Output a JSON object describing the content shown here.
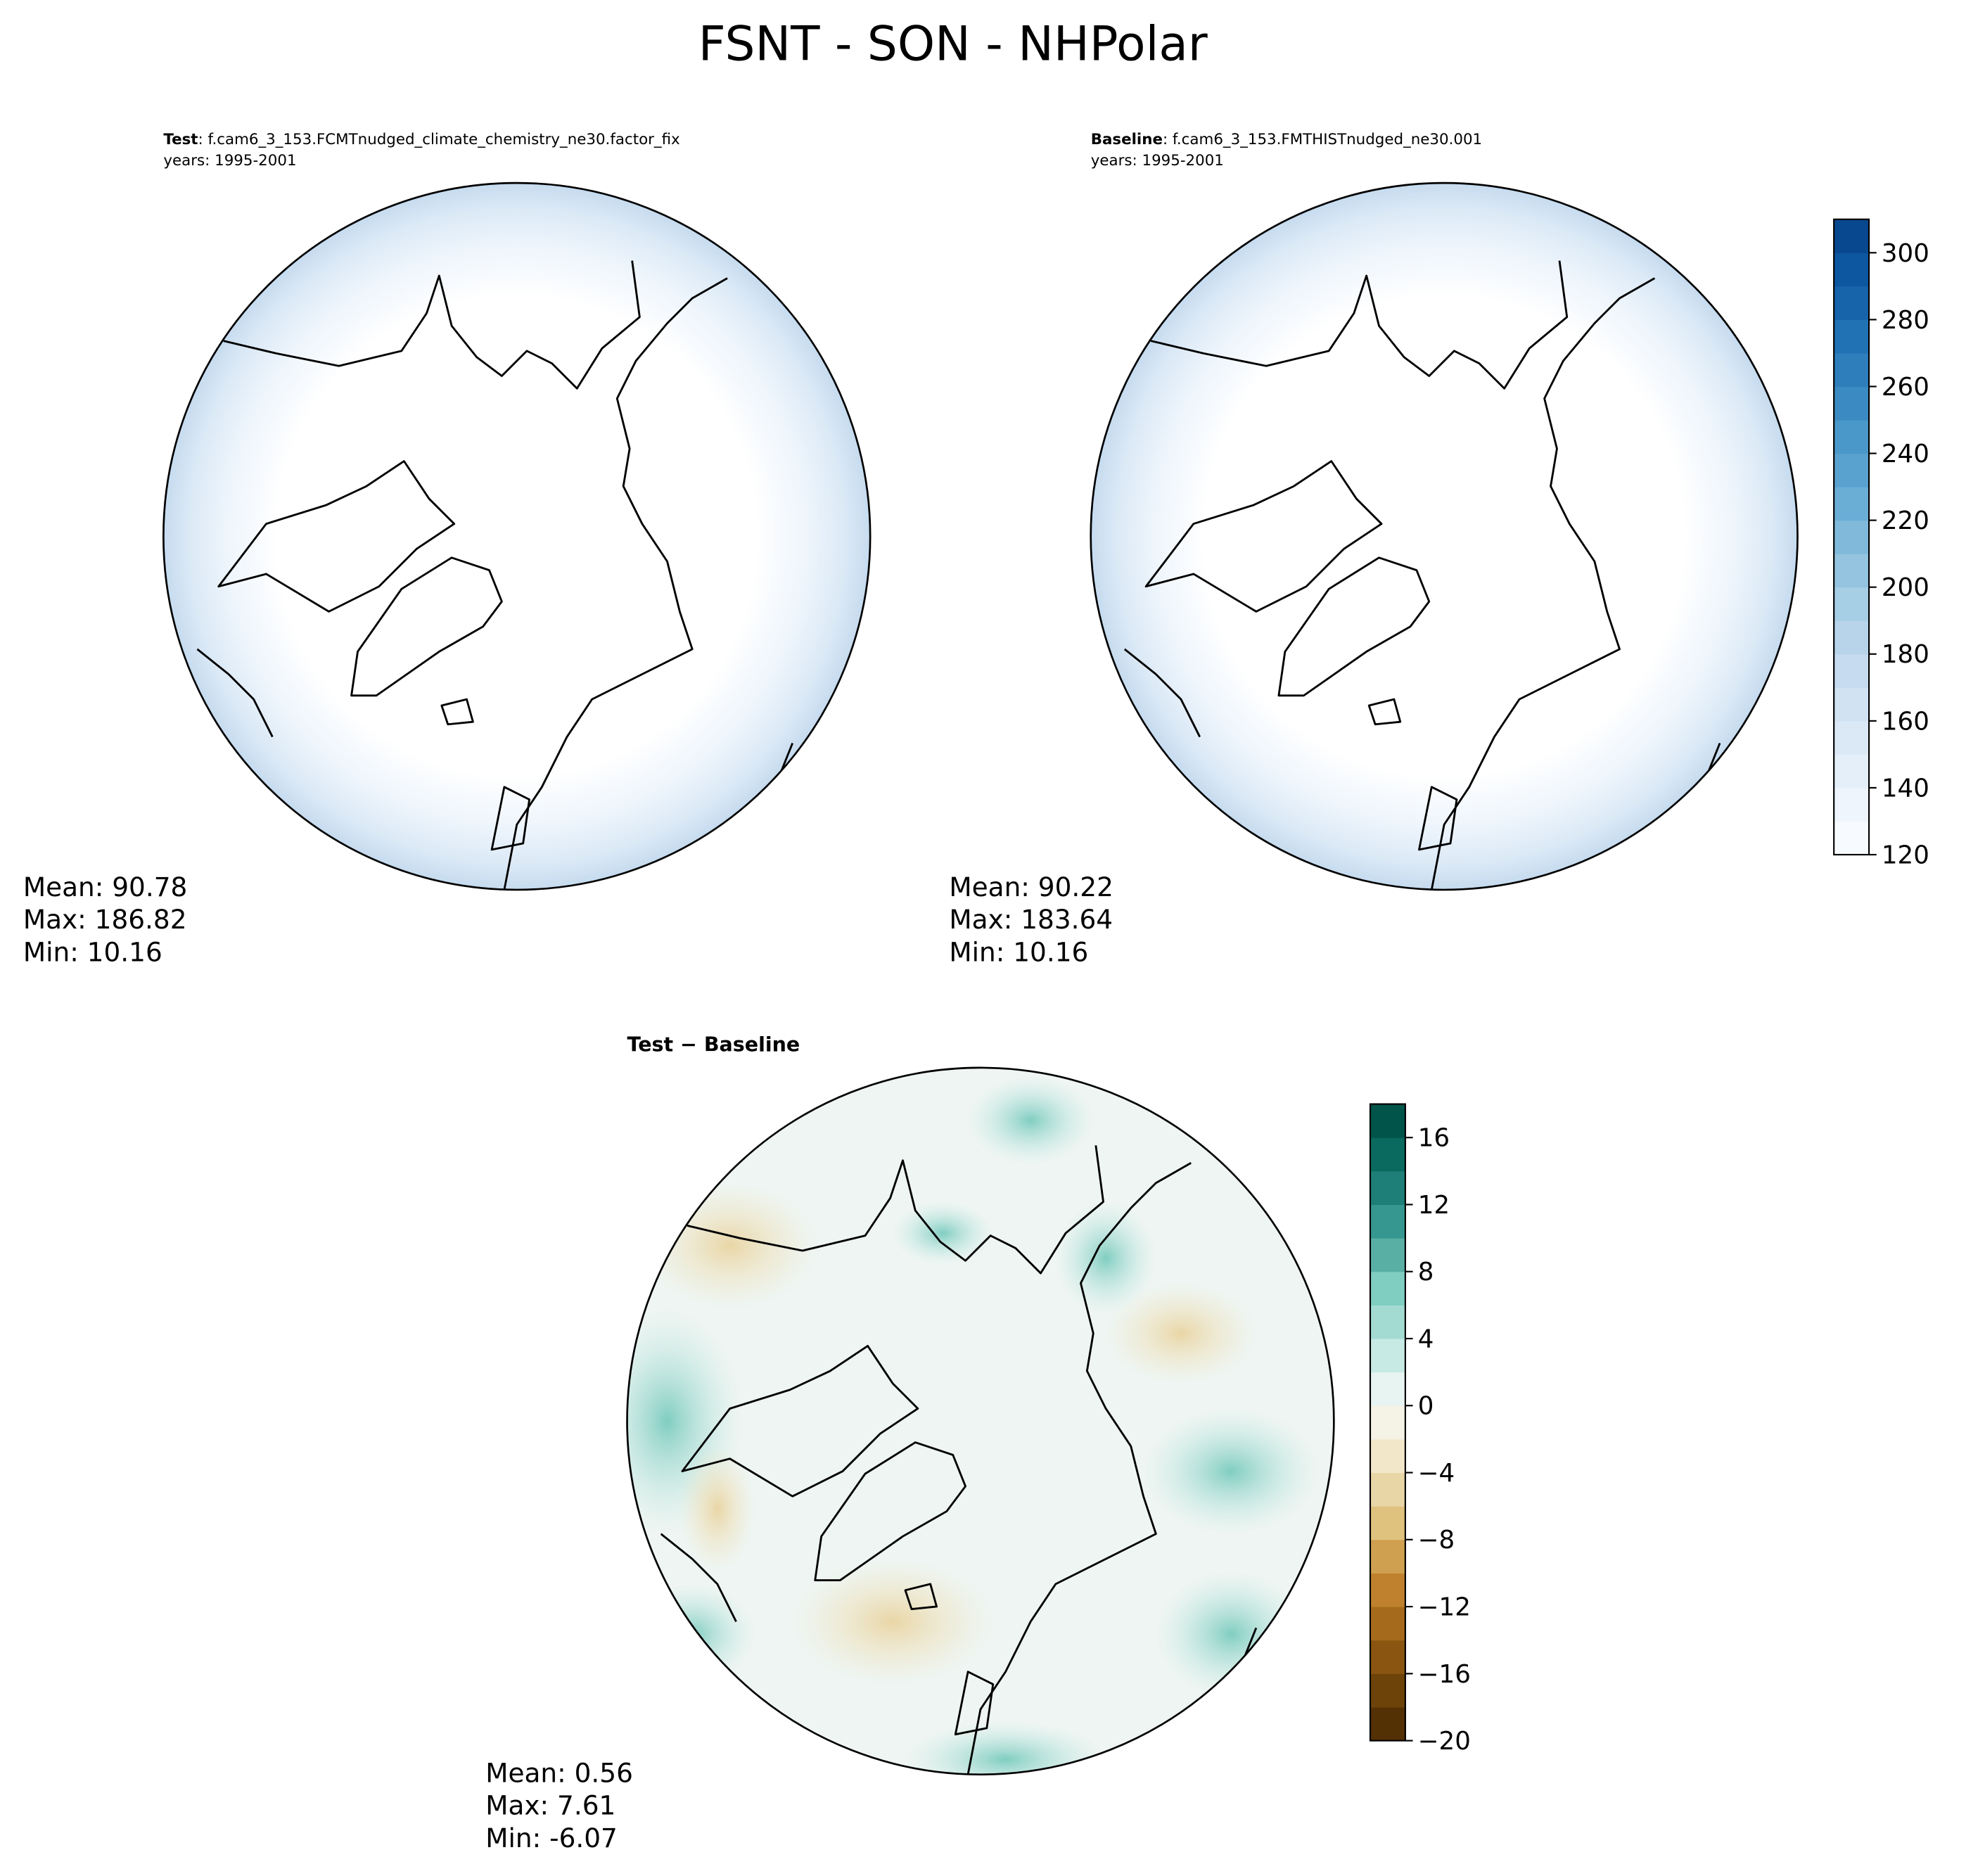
{
  "title": "FSNT - SON - NHPolar",
  "panels": [
    {
      "label": "Test",
      "case": ": f.cam6_3_153.FCMTnudged_climate_chemistry_ne30.factor_fix",
      "years": "years: 1995-2001",
      "stats": [
        "Mean: 90.78",
        "Max: 186.82",
        "Min: 10.16"
      ]
    },
    {
      "label": "Baseline",
      "case": ": f.cam6_3_153.FMTHISTnudged_ne30.001",
      "years": "years: 1995-2001",
      "stats": [
        "Mean: 90.22",
        "Max: 183.64",
        "Min: 10.16"
      ]
    },
    {
      "label": "Test − Baseline",
      "stats": [
        "Mean:  0.56",
        "Max:  7.61",
        "Min: -6.07"
      ]
    }
  ],
  "colorbars": [
    {
      "lim": [
        120,
        310
      ],
      "ticks": [
        120,
        140,
        160,
        180,
        200,
        220,
        240,
        260,
        280,
        300
      ],
      "colors": [
        "#f7fbff",
        "#eef5fc",
        "#e4eff9",
        "#dbe9f6",
        "#d1e2f3",
        "#c6dbef",
        "#b7d4ea",
        "#a6cee4",
        "#94c4df",
        "#80b9da",
        "#6aaed6",
        "#59a1cf",
        "#4a98c9",
        "#3b8bc2",
        "#2e7ebc",
        "#2171b5",
        "#1764ab",
        "#0d57a1",
        "#08488e"
      ]
    },
    {
      "lim": [
        -20,
        18
      ],
      "ticks": [
        {
          "value": -20,
          "label": "−20"
        },
        {
          "value": -16,
          "label": "−16"
        },
        {
          "value": -12,
          "label": "−12"
        },
        {
          "value": -8,
          "label": "−8"
        },
        {
          "value": -4,
          "label": "−4"
        },
        0,
        4,
        8,
        12,
        16
      ],
      "colors": [
        "#543005",
        "#6d4309",
        "#8a5510",
        "#a66a1c",
        "#bf812d",
        "#cfa04f",
        "#dfc27d",
        "#e9d6a6",
        "#f2e8c9",
        "#f5f2e6",
        "#e8f4f2",
        "#c7eae5",
        "#a3dbd2",
        "#80cdc1",
        "#5aafa5",
        "#35978f",
        "#1d7f77",
        "#0a6a5f",
        "#01544a"
      ]
    }
  ]
}
